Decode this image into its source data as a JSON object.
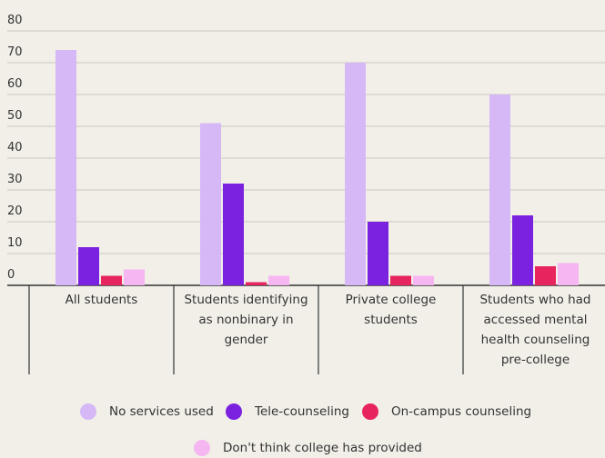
{
  "chart_data": {
    "type": "bar",
    "categories": [
      "All students",
      "Students identifying as nonbinary in gender",
      "Private college students",
      "Students who had accessed mental health counseling pre-college"
    ],
    "series": [
      {
        "name": "No services used",
        "color": "#d6b8f7",
        "values": [
          74,
          51,
          70,
          60
        ]
      },
      {
        "name": "Tele-counseling",
        "color": "#7b22e0",
        "values": [
          12,
          32,
          20,
          22
        ]
      },
      {
        "name": "On-campus counseling",
        "color": "#e8245e",
        "values": [
          3,
          1,
          3,
          6
        ]
      },
      {
        "name": "Don't think college has provided",
        "color": "#f6b6f2",
        "values": [
          5,
          3,
          3,
          7
        ]
      }
    ],
    "ylim": [
      0,
      80
    ],
    "yticks": [
      0,
      10,
      20,
      30,
      40,
      50,
      60,
      70,
      80
    ],
    "grid": true
  }
}
